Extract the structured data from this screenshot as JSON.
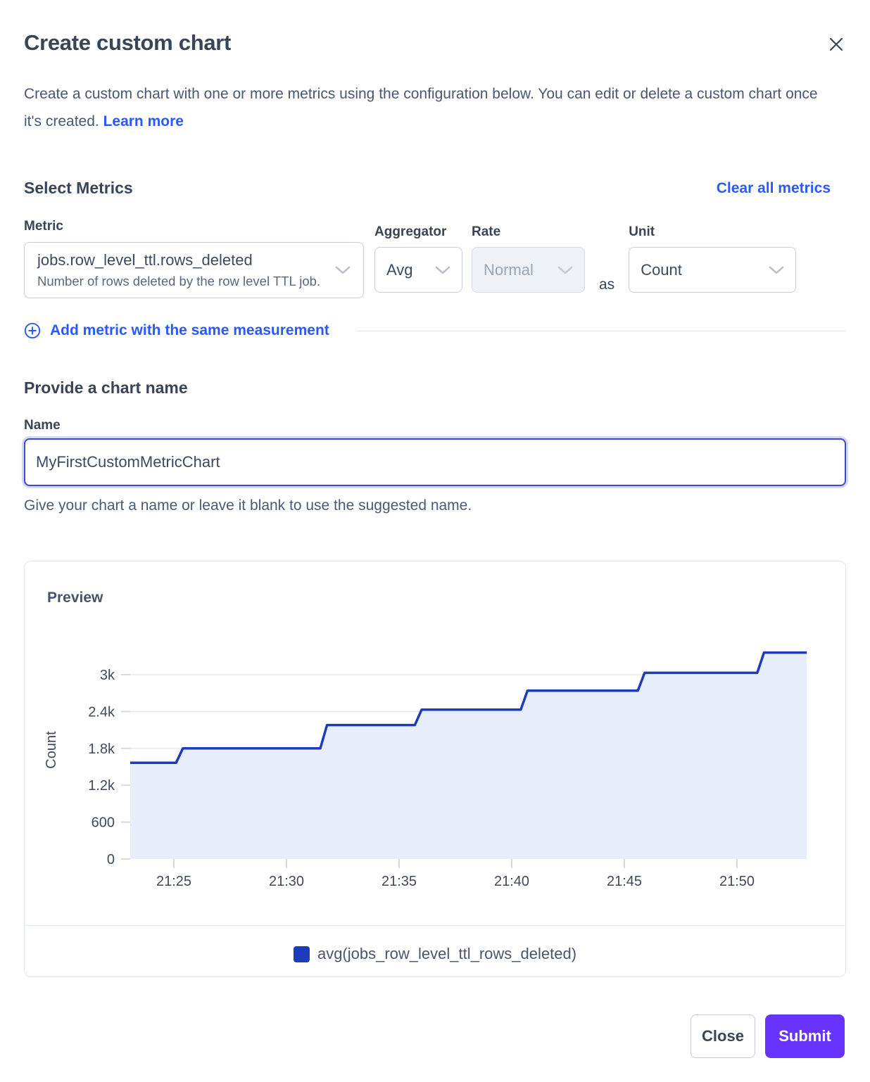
{
  "dialog": {
    "title": "Create custom chart",
    "description_line1": "Create a custom chart with one or more metrics using the configuration below. You can edit or delete a custom chart once",
    "description_line2": "it's created.",
    "learn_more": "Learn more"
  },
  "metrics": {
    "heading": "Select Metrics",
    "clear_all": "Clear all metrics",
    "metric": {
      "label": "Metric",
      "value": "jobs.row_level_ttl.rows_deleted",
      "description": "Number of rows deleted by the row level TTL job."
    },
    "aggregator": {
      "label": "Aggregator",
      "value": "Avg"
    },
    "rate": {
      "label": "Rate",
      "value": "Normal",
      "state": "disabled"
    },
    "as_text": "as",
    "unit": {
      "label": "Unit",
      "value": "Count"
    },
    "add_metric": "Add metric with the same measurement"
  },
  "name_section": {
    "heading": "Provide a chart name",
    "label": "Name",
    "value": "MyFirstCustomMetricChart",
    "helper": "Give your chart a name or leave it blank to use the suggested name."
  },
  "preview": {
    "heading": "Preview",
    "legend": "avg(jobs_row_level_ttl_rows_deleted)"
  },
  "chart_data": {
    "type": "area",
    "title": "Preview",
    "ylabel": "Count",
    "series": [
      {
        "name": "avg(jobs_row_level_ttl_rows_deleted)",
        "points": [
          [
            23.06,
            1565
          ],
          [
            25.1,
            1565
          ],
          [
            25.4,
            1800
          ],
          [
            31.5,
            1800
          ],
          [
            31.8,
            2180
          ],
          [
            35.7,
            2180
          ],
          [
            36.0,
            2430
          ],
          [
            40.4,
            2430
          ],
          [
            40.7,
            2740
          ],
          [
            45.6,
            2740
          ],
          [
            45.9,
            3030
          ],
          [
            50.9,
            3030
          ],
          [
            51.2,
            3360
          ],
          [
            53.1,
            3360
          ]
        ]
      }
    ],
    "x_unit_minutes_after": "21:00",
    "x_ticks": [
      {
        "t": 25,
        "label": "21:25"
      },
      {
        "t": 30,
        "label": "21:30"
      },
      {
        "t": 35,
        "label": "21:35"
      },
      {
        "t": 40,
        "label": "21:40"
      },
      {
        "t": 45,
        "label": "21:45"
      },
      {
        "t": 50,
        "label": "21:50"
      }
    ],
    "y_ticks": [
      {
        "v": 0,
        "label": "0"
      },
      {
        "v": 600,
        "label": "600"
      },
      {
        "v": 1200,
        "label": "1.2k"
      },
      {
        "v": 1800,
        "label": "1.8k"
      },
      {
        "v": 2400,
        "label": "2.4k"
      },
      {
        "v": 3000,
        "label": "3k"
      }
    ],
    "xlim": [
      23.06,
      53.1
    ],
    "ylim": [
      0,
      3436
    ],
    "grid": true,
    "legend_position": "bottom",
    "line_color": "#1e3cba",
    "fill_color": "#e8edfb",
    "grid_color": "#e4e8ef",
    "legend_color": "#1d3bbd"
  },
  "footer": {
    "close": "Close",
    "submit": "Submit"
  }
}
